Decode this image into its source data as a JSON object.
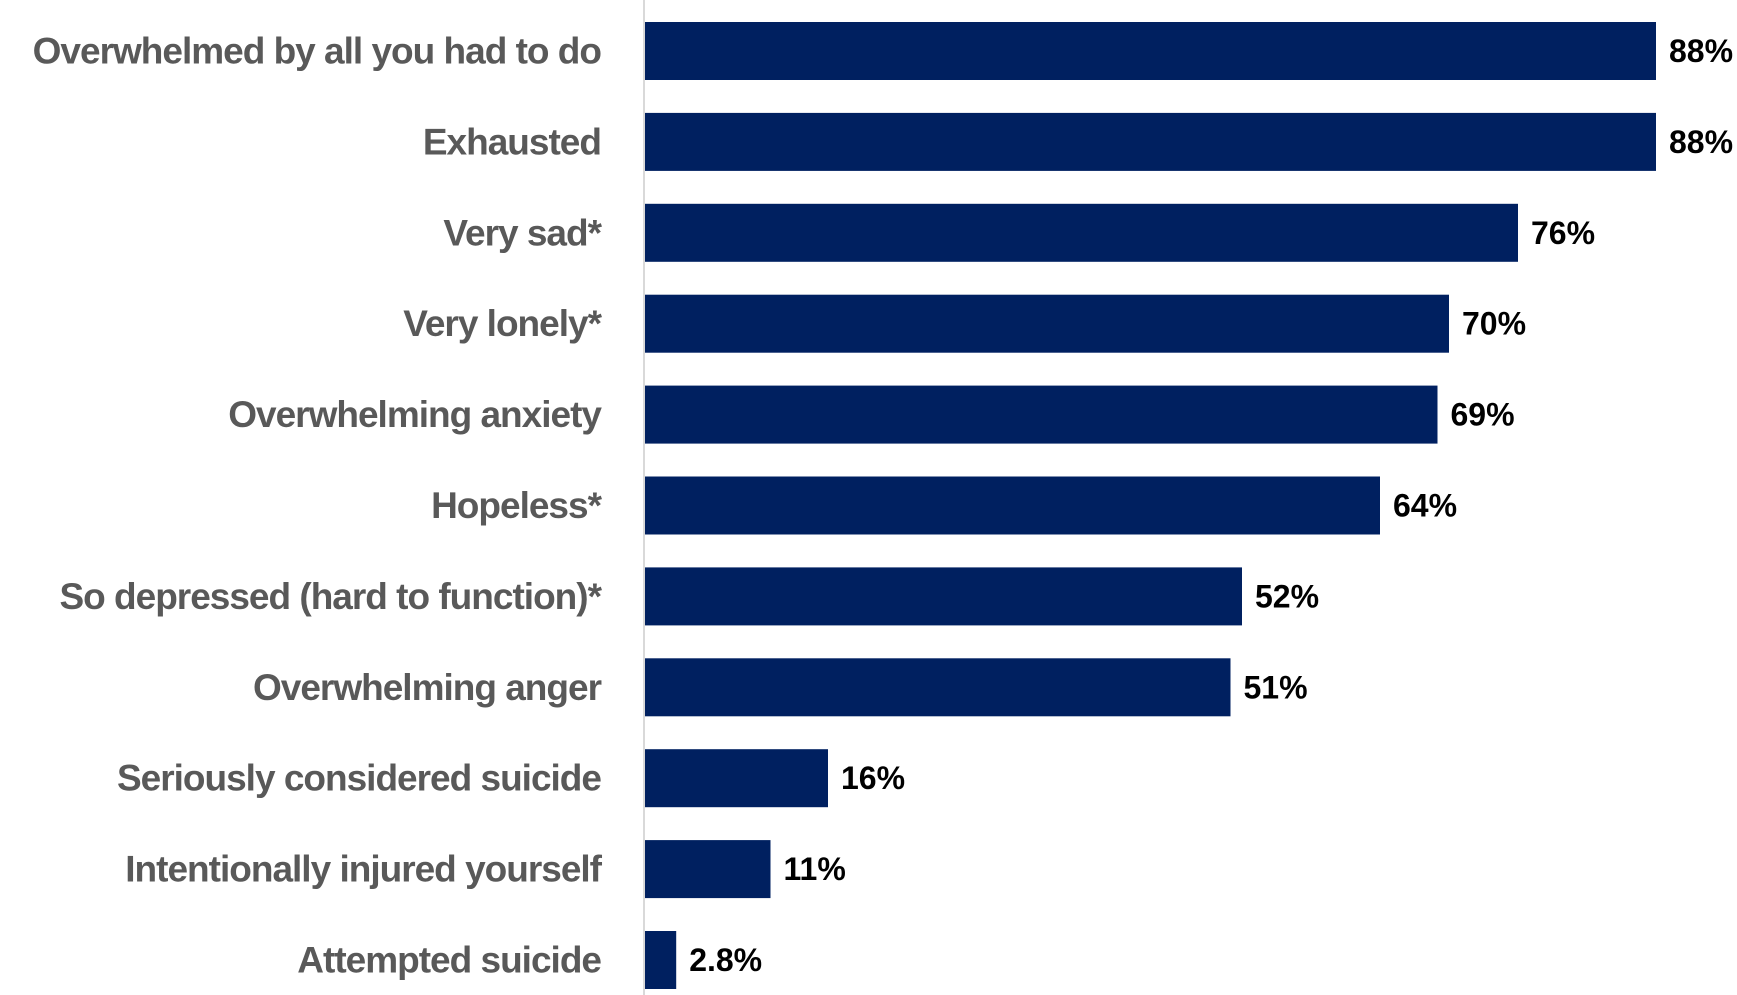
{
  "chart_data": {
    "type": "bar",
    "orientation": "horizontal",
    "categories": [
      "Overwhelmed by all you had to do",
      "Exhausted",
      "Very sad*",
      "Very lonely*",
      "Overwhelming anxiety",
      "Hopeless*",
      "So depressed (hard to function)*",
      "Overwhelming anger",
      "Seriously considered suicide",
      "Intentionally injured yourself",
      "Attempted suicide"
    ],
    "values": [
      88,
      88,
      76,
      70,
      69,
      64,
      52,
      51,
      16,
      11,
      2.8
    ],
    "data_labels": [
      "88%",
      "88%",
      "76%",
      "70%",
      "69%",
      "64%",
      "52%",
      "51%",
      "16%",
      "11%",
      "2.8%"
    ],
    "xlim": [
      0,
      100
    ],
    "grid": false,
    "legend": "none",
    "colors": {
      "bar": "#002060",
      "axis": "#d9d9d9",
      "category_text": "#595959",
      "value_text": "#000000"
    }
  }
}
